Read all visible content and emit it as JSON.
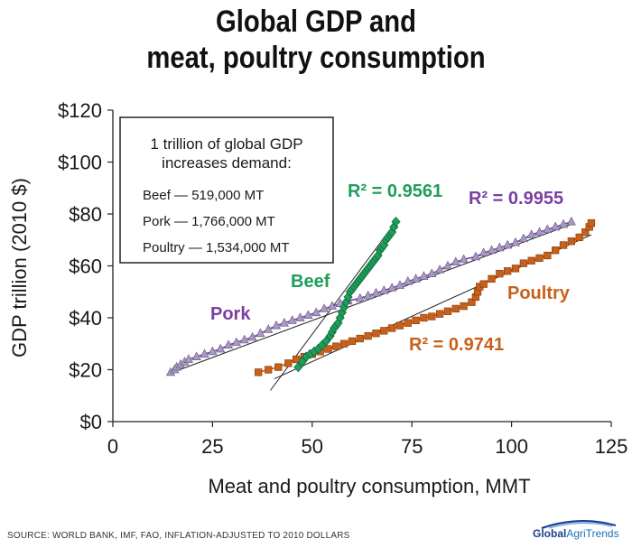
{
  "title_line1": "Global GDP and",
  "title_line2": "meat, poultry consumption",
  "source": "SOURCE: WORLD BANK, IMF, FAO, INFLATION-ADJUSTED TO 2010 DOLLARS",
  "logo": {
    "part1": "Global",
    "part2": "AgriTrends"
  },
  "colors": {
    "beef": "#1f9e5a",
    "pork": "#7b3fa0",
    "poultry": "#c9601a",
    "pork_marker": "#a89ac0",
    "axis": "#222222",
    "trend": "#222222"
  },
  "chart_data": {
    "type": "scatter",
    "xlabel": "Meat and poultry consumption, MMT",
    "ylabel": "GDP trillion (2010 $)",
    "xlim": [
      0,
      125
    ],
    "ylim": [
      0,
      120
    ],
    "x_ticks": [
      0,
      25,
      50,
      75,
      100,
      125
    ],
    "y_ticks": [
      0,
      20,
      40,
      60,
      80,
      100,
      120
    ],
    "y_tick_labels": [
      "$0",
      "$20",
      "$40",
      "$60",
      "$80",
      "$100",
      "$120"
    ],
    "grid": false,
    "annotation_box": {
      "line1": "1 trillion of global GDP",
      "line2": "increases demand:",
      "rows": [
        "Beef — 519,000 MT",
        "Pork — 1,766,000 MT",
        "Poultry — 1,534,000 MT"
      ]
    },
    "series": [
      {
        "name": "Beef",
        "r2": "R² = 0.9561",
        "marker": "diamond",
        "trend": [
          [
            39.5,
            12
          ],
          [
            71,
            77
          ]
        ],
        "points": [
          [
            46.5,
            21
          ],
          [
            47.5,
            23
          ],
          [
            48.5,
            25
          ],
          [
            49.5,
            26
          ],
          [
            50.5,
            27
          ],
          [
            51.5,
            28
          ],
          [
            52.5,
            29.5
          ],
          [
            53.5,
            31
          ],
          [
            54.5,
            33
          ],
          [
            55,
            34.5
          ],
          [
            55.5,
            36
          ],
          [
            56,
            37
          ],
          [
            56.5,
            38
          ],
          [
            57,
            40
          ],
          [
            57.5,
            42
          ],
          [
            58,
            44
          ],
          [
            58.5,
            46
          ],
          [
            59,
            48
          ],
          [
            59.5,
            50
          ],
          [
            60,
            51
          ],
          [
            60.5,
            52
          ],
          [
            61,
            53
          ],
          [
            61.5,
            54
          ],
          [
            62,
            55
          ],
          [
            62.5,
            56
          ],
          [
            63,
            57
          ],
          [
            63.5,
            58
          ],
          [
            64,
            59
          ],
          [
            64.5,
            60
          ],
          [
            65,
            61
          ],
          [
            65.5,
            62
          ],
          [
            66,
            63
          ],
          [
            66.5,
            64
          ],
          [
            67,
            66
          ],
          [
            67.5,
            67
          ],
          [
            68,
            68
          ],
          [
            68.5,
            70
          ],
          [
            69,
            71
          ],
          [
            69.5,
            72
          ],
          [
            70,
            73
          ],
          [
            70.5,
            75
          ],
          [
            71,
            77
          ]
        ]
      },
      {
        "name": "Pork",
        "r2": "R² = 0.9955",
        "marker": "triangle",
        "trend": [
          [
            15,
            19
          ],
          [
            115,
            76
          ]
        ],
        "points": [
          [
            14.5,
            19
          ],
          [
            15.5,
            20
          ],
          [
            16,
            21
          ],
          [
            17,
            22
          ],
          [
            18,
            23
          ],
          [
            19,
            24
          ],
          [
            21,
            25
          ],
          [
            23,
            26
          ],
          [
            25,
            27
          ],
          [
            27,
            28
          ],
          [
            29,
            29.5
          ],
          [
            31,
            30.5
          ],
          [
            33,
            31.5
          ],
          [
            35,
            32.5
          ],
          [
            37,
            34
          ],
          [
            39,
            35.5
          ],
          [
            41,
            37
          ],
          [
            43,
            38
          ],
          [
            45,
            39
          ],
          [
            47,
            40
          ],
          [
            49,
            41
          ],
          [
            51,
            42
          ],
          [
            53,
            43.5
          ],
          [
            55,
            44.5
          ],
          [
            57,
            45.5
          ],
          [
            59,
            46.5
          ],
          [
            62,
            47.5
          ],
          [
            64,
            48.5
          ],
          [
            66,
            49.5
          ],
          [
            68,
            50.5
          ],
          [
            70,
            51.5
          ],
          [
            72,
            52.5
          ],
          [
            74,
            54
          ],
          [
            76,
            55
          ],
          [
            78,
            56
          ],
          [
            80,
            57
          ],
          [
            82,
            58.5
          ],
          [
            84,
            60
          ],
          [
            86,
            61.5
          ],
          [
            88,
            62.5
          ],
          [
            91,
            63.5
          ],
          [
            93,
            65
          ],
          [
            95,
            66
          ],
          [
            97,
            67
          ],
          [
            99,
            68
          ],
          [
            101,
            69
          ],
          [
            103,
            70.5
          ],
          [
            105,
            72
          ],
          [
            107,
            73
          ],
          [
            109,
            74
          ],
          [
            111,
            75
          ],
          [
            113,
            76
          ],
          [
            115,
            77
          ]
        ]
      },
      {
        "name": "Poultry",
        "r2": "R² = 0.9741",
        "marker": "square",
        "trend": [
          [
            40.5,
            16.5
          ],
          [
            120,
            72
          ]
        ],
        "points": [
          [
            36.5,
            19
          ],
          [
            39,
            20
          ],
          [
            41.5,
            21
          ],
          [
            44,
            22.5
          ],
          [
            46,
            24
          ],
          [
            48,
            25
          ],
          [
            50,
            26
          ],
          [
            52,
            27
          ],
          [
            54,
            28
          ],
          [
            56,
            29
          ],
          [
            58,
            30
          ],
          [
            60,
            31
          ],
          [
            62,
            32
          ],
          [
            64,
            33
          ],
          [
            66,
            34
          ],
          [
            68,
            35
          ],
          [
            70,
            36
          ],
          [
            72,
            37
          ],
          [
            74,
            38
          ],
          [
            76,
            39
          ],
          [
            78,
            40
          ],
          [
            80,
            40.5
          ],
          [
            82,
            41.5
          ],
          [
            84,
            42.5
          ],
          [
            86,
            43.5
          ],
          [
            88,
            44.5
          ],
          [
            90,
            46
          ],
          [
            91,
            48
          ],
          [
            91.5,
            50
          ],
          [
            92,
            52
          ],
          [
            93,
            53
          ],
          [
            95,
            55
          ],
          [
            97,
            57
          ],
          [
            99,
            58
          ],
          [
            101,
            59
          ],
          [
            103,
            61
          ],
          [
            105,
            62
          ],
          [
            107,
            63
          ],
          [
            109,
            64
          ],
          [
            111,
            66
          ],
          [
            113,
            68
          ],
          [
            115,
            69.5
          ],
          [
            117,
            71
          ],
          [
            118.5,
            73
          ],
          [
            119.5,
            75
          ],
          [
            120,
            76.5
          ]
        ]
      }
    ]
  }
}
